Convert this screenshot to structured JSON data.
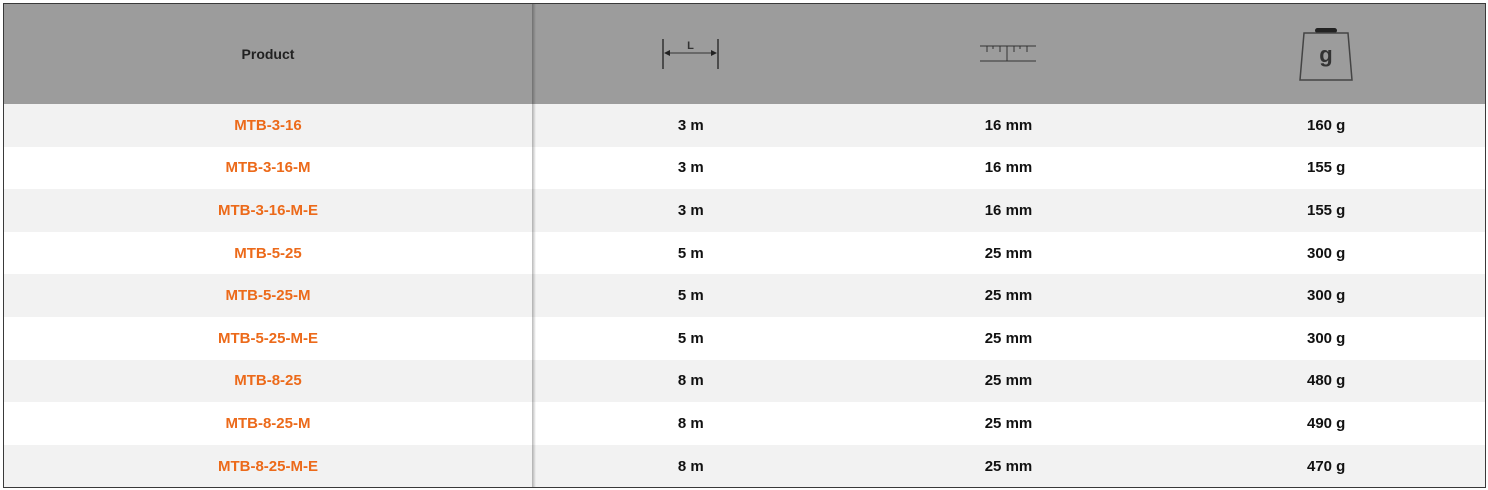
{
  "header": {
    "product_label": "Product",
    "length_icon": "length-dimension-icon",
    "length_icon_letter": "L",
    "width_icon": "ruler-blade-width-icon",
    "weight_icon": "weight-icon",
    "weight_icon_letter": "g"
  },
  "colors": {
    "product_link": "#ec6a1a",
    "header_bg": "#9c9c9c",
    "row_alt": "#f2f2f2"
  },
  "rows": [
    {
      "product": "MTB-3-16",
      "length": "3 m",
      "width": "16 mm",
      "weight": "160 g"
    },
    {
      "product": "MTB-3-16-M",
      "length": "3 m",
      "width": "16 mm",
      "weight": "155 g"
    },
    {
      "product": "MTB-3-16-M-E",
      "length": "3 m",
      "width": "16 mm",
      "weight": "155 g"
    },
    {
      "product": "MTB-5-25",
      "length": "5 m",
      "width": "25 mm",
      "weight": "300 g"
    },
    {
      "product": "MTB-5-25-M",
      "length": "5 m",
      "width": "25 mm",
      "weight": "300 g"
    },
    {
      "product": "MTB-5-25-M-E",
      "length": "5 m",
      "width": "25 mm",
      "weight": "300 g"
    },
    {
      "product": "MTB-8-25",
      "length": "8 m",
      "width": "25 mm",
      "weight": "480 g"
    },
    {
      "product": "MTB-8-25-M",
      "length": "8 m",
      "width": "25 mm",
      "weight": "490 g"
    },
    {
      "product": "MTB-8-25-M-E",
      "length": "8 m",
      "width": "25 mm",
      "weight": "470 g"
    }
  ]
}
